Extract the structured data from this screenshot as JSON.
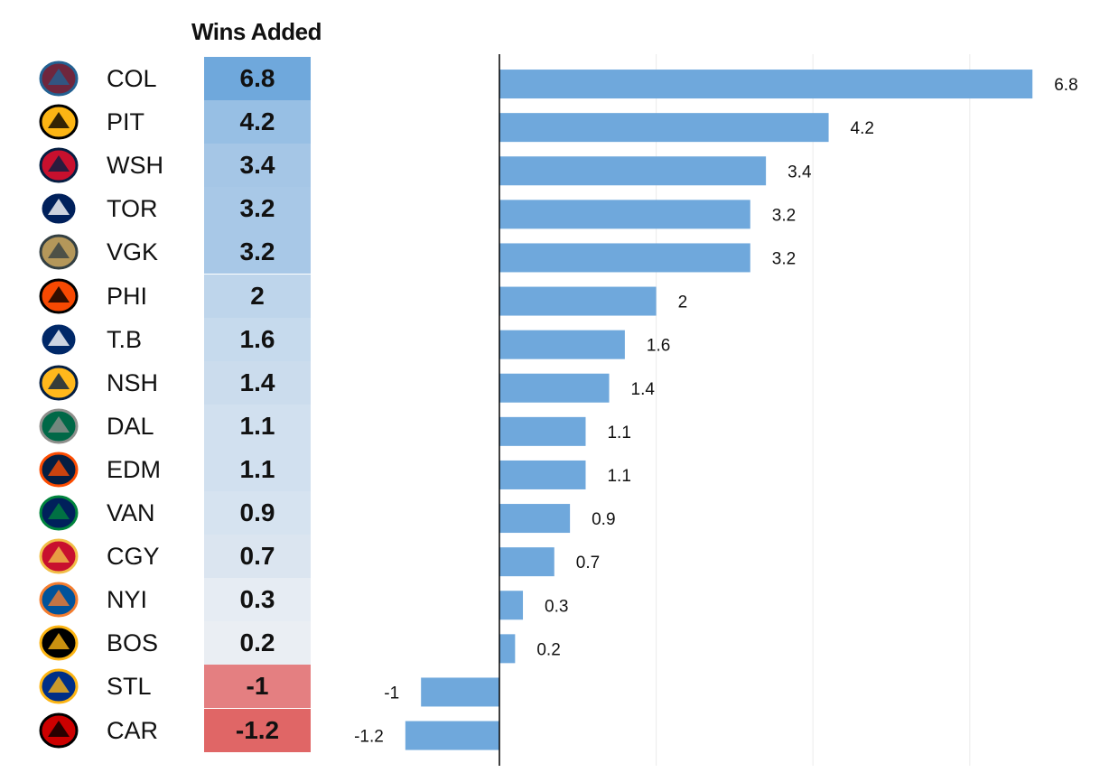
{
  "header": {
    "column_title": "Wins Added"
  },
  "colors": {
    "bar": "#6fa8dc",
    "cell_max": "#6fa8dc",
    "cell_min": "#f3f3f5",
    "cell_negative_mild": "#e47f81",
    "cell_negative_strong": "#e06666",
    "gridline": "#eeeeee",
    "zero_line": "#000000"
  },
  "teams": [
    {
      "abbr": "COL",
      "value": "6.8",
      "logo": "colorado-avalanche-logo-icon"
    },
    {
      "abbr": "PIT",
      "value": "4.2",
      "logo": "pittsburgh-penguins-logo-icon"
    },
    {
      "abbr": "WSH",
      "value": "3.4",
      "logo": "washington-capitals-logo-icon"
    },
    {
      "abbr": "TOR",
      "value": "3.2",
      "logo": "toronto-maple-leafs-logo-icon"
    },
    {
      "abbr": "VGK",
      "value": "3.2",
      "logo": "vegas-golden-knights-logo-icon"
    },
    {
      "abbr": "PHI",
      "value": "2",
      "logo": "philadelphia-flyers-logo-icon"
    },
    {
      "abbr": "T.B",
      "value": "1.6",
      "logo": "tampa-bay-lightning-logo-icon"
    },
    {
      "abbr": "NSH",
      "value": "1.4",
      "logo": "nashville-predators-logo-icon"
    },
    {
      "abbr": "DAL",
      "value": "1.1",
      "logo": "dallas-stars-logo-icon"
    },
    {
      "abbr": "EDM",
      "value": "1.1",
      "logo": "edmonton-oilers-logo-icon"
    },
    {
      "abbr": "VAN",
      "value": "0.9",
      "logo": "vancouver-canucks-logo-icon"
    },
    {
      "abbr": "CGY",
      "value": "0.7",
      "logo": "calgary-flames-logo-icon"
    },
    {
      "abbr": "NYI",
      "value": "0.3",
      "logo": "new-york-islanders-logo-icon"
    },
    {
      "abbr": "BOS",
      "value": "0.2",
      "logo": "boston-bruins-logo-icon"
    },
    {
      "abbr": "STL",
      "value": "-1",
      "logo": "st-louis-blues-logo-icon"
    },
    {
      "abbr": "CAR",
      "value": "-1.2",
      "logo": "carolina-hurricanes-logo-icon"
    }
  ],
  "chart_data": {
    "type": "bar",
    "orientation": "horizontal",
    "categories": [
      "COL",
      "PIT",
      "WSH",
      "TOR",
      "VGK",
      "PHI",
      "T.B",
      "NSH",
      "DAL",
      "EDM",
      "VAN",
      "CGY",
      "NYI",
      "BOS",
      "STL",
      "CAR"
    ],
    "values": [
      6.8,
      4.2,
      3.4,
      3.2,
      3.2,
      2,
      1.6,
      1.4,
      1.1,
      1.1,
      0.9,
      0.7,
      0.3,
      0.2,
      -1,
      -1.2
    ],
    "data_labels": [
      "6.8",
      "4.2",
      "3.4",
      "3.2",
      "3.2",
      "2",
      "1.6",
      "1.4",
      "1.1",
      "1.1",
      "0.9",
      "0.7",
      "0.3",
      "0.2",
      "-1",
      "-1.2"
    ],
    "title": "Wins Added",
    "xlim": [
      -1.2,
      7.2
    ],
    "gridlines_at": [
      2,
      4,
      6
    ],
    "grid": true,
    "legend": "none"
  }
}
